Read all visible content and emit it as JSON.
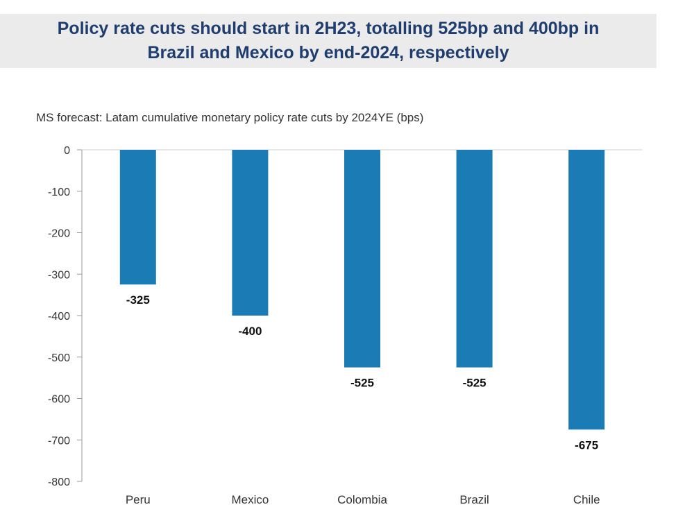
{
  "header": {
    "title_line1": "Policy rate cuts should start in 2H23, totalling 525bp and 400bp in",
    "title_line2": "Brazil and Mexico by end-2024, respectively"
  },
  "chart_data": {
    "type": "bar",
    "title": "MS forecast: Latam cumulative monetary policy rate cuts by 2024YE (bps)",
    "categories": [
      "Peru",
      "Mexico",
      "Colombia",
      "Brazil",
      "Chile"
    ],
    "values": [
      -325,
      -400,
      -525,
      -525,
      -675
    ],
    "data_labels": [
      "-325",
      "-400",
      "-525",
      "-525",
      "-675"
    ],
    "ylim": [
      -800,
      0
    ],
    "yticks": [
      "0",
      "-100",
      "-200",
      "-300",
      "-400",
      "-500",
      "-600",
      "-700",
      "-800"
    ],
    "xlabel": "",
    "ylabel": "",
    "grid": false,
    "legend": "none",
    "bar_color": "#1b7bb4"
  }
}
